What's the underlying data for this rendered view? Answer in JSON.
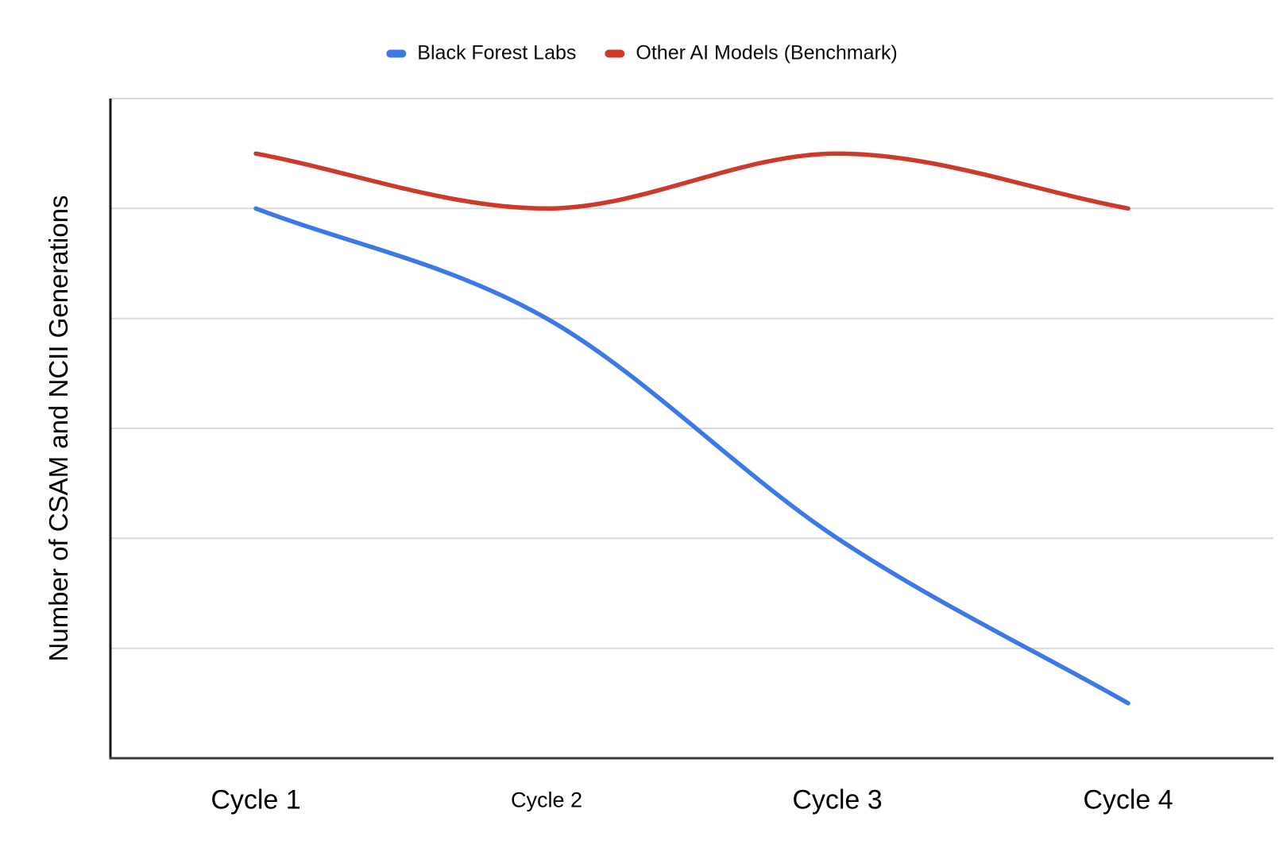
{
  "chart_data": {
    "type": "line",
    "smooth": true,
    "title": "",
    "xlabel": "",
    "ylabel": "Number of CSAM and NCII Generations",
    "categories": [
      "Cycle 1",
      "Cycle 2",
      "Cycle 3",
      "Cycle 4"
    ],
    "series": [
      {
        "name": "Black Forest Labs",
        "color": "#3C78E6",
        "values": [
          5,
          4,
          2,
          0.5
        ]
      },
      {
        "name": "Other AI Models (Benchmark)",
        "color": "#CD392B",
        "values": [
          5.5,
          5,
          5.5,
          5
        ]
      }
    ],
    "ylim": [
      0,
      6
    ],
    "gridline_step": 1,
    "y_tick_labels_visible": false,
    "x_tick_labels_visible": true,
    "grid": true,
    "legend_position": "top",
    "line_width": 5.5,
    "gridline_color": "#D9D9D9",
    "y_axis_color": "#161616",
    "x_axis_color": "#3C3C3C",
    "background_color": "#FFFFFF"
  }
}
